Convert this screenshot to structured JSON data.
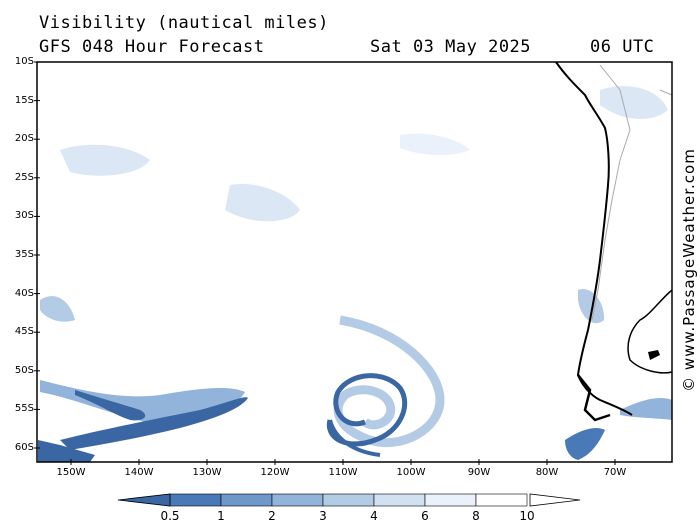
{
  "header": {
    "title": "Visibility (nautical miles)",
    "model": "GFS 048 Hour Forecast",
    "date": "Sat 03 May 2025",
    "time": "06 UTC"
  },
  "credit": "© www.PassageWeather.com",
  "map": {
    "lat_labels": [
      "10S",
      "15S",
      "20S",
      "25S",
      "30S",
      "35S",
      "40S",
      "45S",
      "50S",
      "55S",
      "60S"
    ],
    "lon_labels": [
      "150W",
      "140W",
      "130W",
      "120W",
      "110W",
      "100W",
      "90W",
      "80W",
      "70W"
    ],
    "colors": {
      "land_outline": "#000000",
      "border": "#aaaaaa",
      "ocean": "#ffffff"
    }
  },
  "legend": {
    "ticks": [
      "0.5",
      "1",
      "2",
      "3",
      "4",
      "6",
      "8",
      "10"
    ],
    "colors": [
      "#3a67a3",
      "#4a79b8",
      "#6e97ca",
      "#93b4da",
      "#b4cbe6",
      "#d2e1f2",
      "#eaf1fa",
      "#ffffff",
      "#ffffff"
    ]
  }
}
